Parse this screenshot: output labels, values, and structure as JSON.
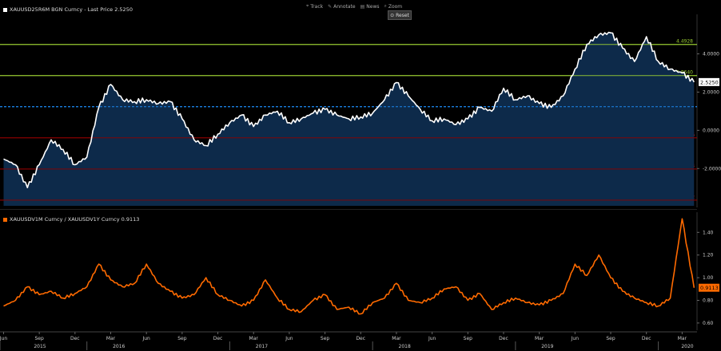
{
  "toolbar": {
    "items": [
      {
        "icon": "track-icon",
        "glyph": "⌖",
        "label": "Track"
      },
      {
        "icon": "annotate-icon",
        "glyph": "✎",
        "label": "Annotate"
      },
      {
        "icon": "news-icon",
        "glyph": "▤",
        "label": "News"
      },
      {
        "icon": "zoom-icon",
        "glyph": "⌕",
        "label": "Zoom"
      }
    ],
    "reset_label": "Reset"
  },
  "colors": {
    "background": "#000000",
    "main_line": "#ffffff",
    "main_fill": "#0d2a4a",
    "lower_line": "#ff6a00",
    "green_band": "#9acd32",
    "mean_line": "#1e90ff",
    "red_band": "#8b0000",
    "axis_text": "#cccccc"
  },
  "chart_data": [
    {
      "type": "area",
      "legend": "XAUUSD25R6M BGN Curncy - Last Price 2.5250",
      "last_value": 2.525,
      "ylim": [
        -3.95,
        5.9
      ],
      "yticks": [
        4.0,
        2.0,
        0.0,
        -2.0
      ],
      "ytick_labels": [
        "4.0000",
        "2.0000",
        "0.0000",
        "-2.0000"
      ],
      "bands": [
        {
          "value": 4.4928,
          "label": "4.4928",
          "color": "green"
        },
        {
          "value": 2.864,
          "label": "2.8640",
          "color": "green"
        },
        {
          "value": 1.2352,
          "label": "1.2352",
          "color": "blue",
          "dashed": true
        },
        {
          "value": -0.3936,
          "label": "-0.3936",
          "color": "red"
        },
        {
          "value": -2.0224,
          "label": "-2.0224",
          "color": "red"
        },
        {
          "value": -3.6512,
          "label": "-3.6512",
          "color": "red"
        }
      ],
      "series": [
        {
          "x": [
            "2015-06",
            "2015-07",
            "2015-08",
            "2015-09",
            "2015-10",
            "2015-11",
            "2015-12",
            "2016-01",
            "2016-02",
            "2016-03",
            "2016-04",
            "2016-05",
            "2016-06",
            "2016-07",
            "2016-08",
            "2016-09",
            "2016-10",
            "2016-11",
            "2016-12",
            "2017-01",
            "2017-02",
            "2017-03",
            "2017-04",
            "2017-05",
            "2017-06",
            "2017-07",
            "2017-08",
            "2017-09",
            "2017-10",
            "2017-11",
            "2017-12",
            "2018-01",
            "2018-02",
            "2018-03",
            "2018-04",
            "2018-05",
            "2018-06",
            "2018-07",
            "2018-08",
            "2018-09",
            "2018-10",
            "2018-11",
            "2018-12",
            "2019-01",
            "2019-02",
            "2019-03",
            "2019-04",
            "2019-05",
            "2019-06",
            "2019-07",
            "2019-08",
            "2019-09",
            "2019-10",
            "2019-11",
            "2019-12",
            "2020-01",
            "2020-02",
            "2020-03",
            "2020-04"
          ],
          "values": [
            -1.5,
            -1.8,
            -3.0,
            -1.8,
            -0.5,
            -1.0,
            -1.8,
            -1.4,
            1.2,
            2.4,
            1.6,
            1.5,
            1.6,
            1.4,
            1.5,
            0.6,
            -0.5,
            -0.8,
            -0.2,
            0.4,
            0.8,
            0.2,
            0.8,
            1.0,
            0.4,
            0.6,
            0.9,
            1.1,
            0.8,
            0.6,
            0.7,
            0.9,
            1.6,
            2.5,
            1.8,
            1.1,
            0.5,
            0.6,
            0.3,
            0.6,
            1.2,
            1.0,
            2.2,
            1.6,
            1.8,
            1.4,
            1.2,
            1.8,
            3.2,
            4.5,
            5.0,
            5.1,
            4.3,
            3.6,
            4.9,
            3.6,
            3.2,
            3.0,
            2.525
          ]
        }
      ]
    },
    {
      "type": "line",
      "legend": "XAUUSDV1M Curncy / XAUUSDV1Y Curncy 0.9113",
      "last_value": 0.9113,
      "ylim": [
        0.55,
        1.55
      ],
      "yticks": [
        1.4,
        1.2,
        1.0,
        0.8,
        0.6
      ],
      "ytick_labels": [
        "1.40",
        "1.20",
        "1.00",
        "0.80",
        "0.60"
      ],
      "series": [
        {
          "x": [
            "2015-06",
            "2015-07",
            "2015-08",
            "2015-09",
            "2015-10",
            "2015-11",
            "2015-12",
            "2016-01",
            "2016-02",
            "2016-03",
            "2016-04",
            "2016-05",
            "2016-06",
            "2016-07",
            "2016-08",
            "2016-09",
            "2016-10",
            "2016-11",
            "2016-12",
            "2017-01",
            "2017-02",
            "2017-03",
            "2017-04",
            "2017-05",
            "2017-06",
            "2017-07",
            "2017-08",
            "2017-09",
            "2017-10",
            "2017-11",
            "2017-12",
            "2018-01",
            "2018-02",
            "2018-03",
            "2018-04",
            "2018-05",
            "2018-06",
            "2018-07",
            "2018-08",
            "2018-09",
            "2018-10",
            "2018-11",
            "2018-12",
            "2019-01",
            "2019-02",
            "2019-03",
            "2019-04",
            "2019-05",
            "2019-06",
            "2019-07",
            "2019-08",
            "2019-09",
            "2019-10",
            "2019-11",
            "2019-12",
            "2020-01",
            "2020-02",
            "2020-03",
            "2020-04"
          ],
          "values": [
            0.75,
            0.8,
            0.92,
            0.85,
            0.88,
            0.82,
            0.86,
            0.92,
            1.12,
            0.98,
            0.92,
            0.95,
            1.12,
            0.95,
            0.88,
            0.82,
            0.85,
            1.0,
            0.85,
            0.8,
            0.75,
            0.8,
            0.98,
            0.82,
            0.72,
            0.7,
            0.8,
            0.85,
            0.72,
            0.74,
            0.68,
            0.78,
            0.82,
            0.95,
            0.8,
            0.78,
            0.82,
            0.9,
            0.92,
            0.8,
            0.86,
            0.72,
            0.78,
            0.82,
            0.78,
            0.76,
            0.8,
            0.86,
            1.12,
            1.02,
            1.2,
            1.0,
            0.88,
            0.82,
            0.78,
            0.75,
            0.82,
            1.52,
            0.9113
          ]
        }
      ]
    }
  ],
  "x_axis": {
    "month_labels": [
      "Jun",
      "Sep",
      "Dec",
      "Mar",
      "Jun",
      "Sep",
      "Dec",
      "Mar",
      "Jun",
      "Sep",
      "Dec",
      "Mar",
      "Jun",
      "Sep",
      "Dec",
      "Mar",
      "Jun",
      "Sep",
      "Dec",
      "Mar"
    ],
    "month_dates": [
      "2015-06",
      "2015-09",
      "2015-12",
      "2016-03",
      "2016-06",
      "2016-09",
      "2016-12",
      "2017-03",
      "2017-06",
      "2017-09",
      "2017-12",
      "2018-03",
      "2018-06",
      "2018-09",
      "2018-12",
      "2019-03",
      "2019-06",
      "2019-09",
      "2019-12",
      "2020-03"
    ],
    "year_labels": [
      "2015",
      "2016",
      "2017",
      "2018",
      "2019",
      "2020"
    ],
    "year_dates": [
      "2015-01",
      "2016-01",
      "2017-01",
      "2018-01",
      "2019-01",
      "2020-01"
    ]
  }
}
